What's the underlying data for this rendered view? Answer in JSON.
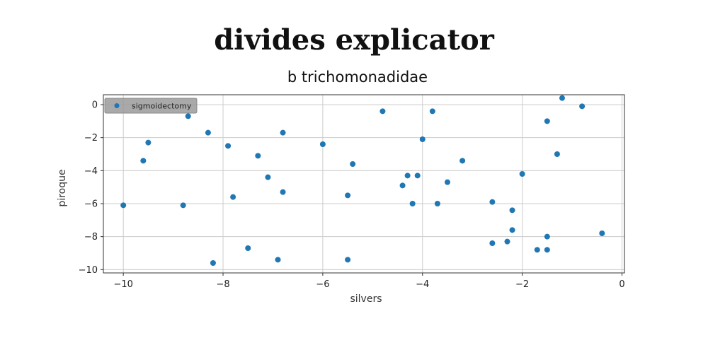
{
  "chart_data": {
    "type": "scatter",
    "title": "divides explicator",
    "subtitle": "b trichomonadidae",
    "xlabel": "silvers",
    "ylabel": "piroque",
    "xlim": [
      -10.4,
      0.05
    ],
    "ylim": [
      -10.2,
      0.6
    ],
    "x_ticks": [
      -10,
      -8,
      -6,
      -4,
      -2,
      0
    ],
    "y_ticks": [
      0,
      -2,
      -4,
      -6,
      -8,
      -10
    ],
    "grid": true,
    "legend_position": "top-left",
    "colors": {
      "series": "#1f77b4",
      "grid": "#cccccc",
      "axis": "#333333"
    },
    "series": [
      {
        "name": "sigmoidectomy",
        "points": [
          [
            -10.0,
            -6.1
          ],
          [
            -9.6,
            -3.4
          ],
          [
            -9.5,
            -2.3
          ],
          [
            -8.8,
            -6.1
          ],
          [
            -8.7,
            -0.7
          ],
          [
            -8.3,
            -1.7
          ],
          [
            -8.2,
            -9.6
          ],
          [
            -7.9,
            -2.5
          ],
          [
            -7.8,
            -5.6
          ],
          [
            -7.5,
            -8.7
          ],
          [
            -7.3,
            -3.1
          ],
          [
            -7.1,
            -4.4
          ],
          [
            -6.9,
            -9.4
          ],
          [
            -6.8,
            -1.7
          ],
          [
            -6.8,
            -5.3
          ],
          [
            -6.0,
            -2.4
          ],
          [
            -5.5,
            -5.5
          ],
          [
            -5.5,
            -9.4
          ],
          [
            -5.4,
            -3.6
          ],
          [
            -4.8,
            -0.4
          ],
          [
            -4.4,
            -4.9
          ],
          [
            -4.3,
            -4.3
          ],
          [
            -4.2,
            -6.0
          ],
          [
            -4.1,
            -4.3
          ],
          [
            -4.0,
            -2.1
          ],
          [
            -3.8,
            -0.4
          ],
          [
            -3.7,
            -6.0
          ],
          [
            -3.5,
            -4.7
          ],
          [
            -3.2,
            -3.4
          ],
          [
            -2.6,
            -5.9
          ],
          [
            -2.6,
            -8.4
          ],
          [
            -2.3,
            -8.3
          ],
          [
            -2.2,
            -6.4
          ],
          [
            -2.2,
            -7.6
          ],
          [
            -2.0,
            -4.2
          ],
          [
            -1.7,
            -8.8
          ],
          [
            -1.5,
            -8.8
          ],
          [
            -1.5,
            -8.0
          ],
          [
            -1.5,
            -1.0
          ],
          [
            -1.3,
            -3.0
          ],
          [
            -1.2,
            0.4
          ],
          [
            -0.8,
            -0.1
          ],
          [
            -0.4,
            -7.8
          ]
        ]
      }
    ]
  }
}
